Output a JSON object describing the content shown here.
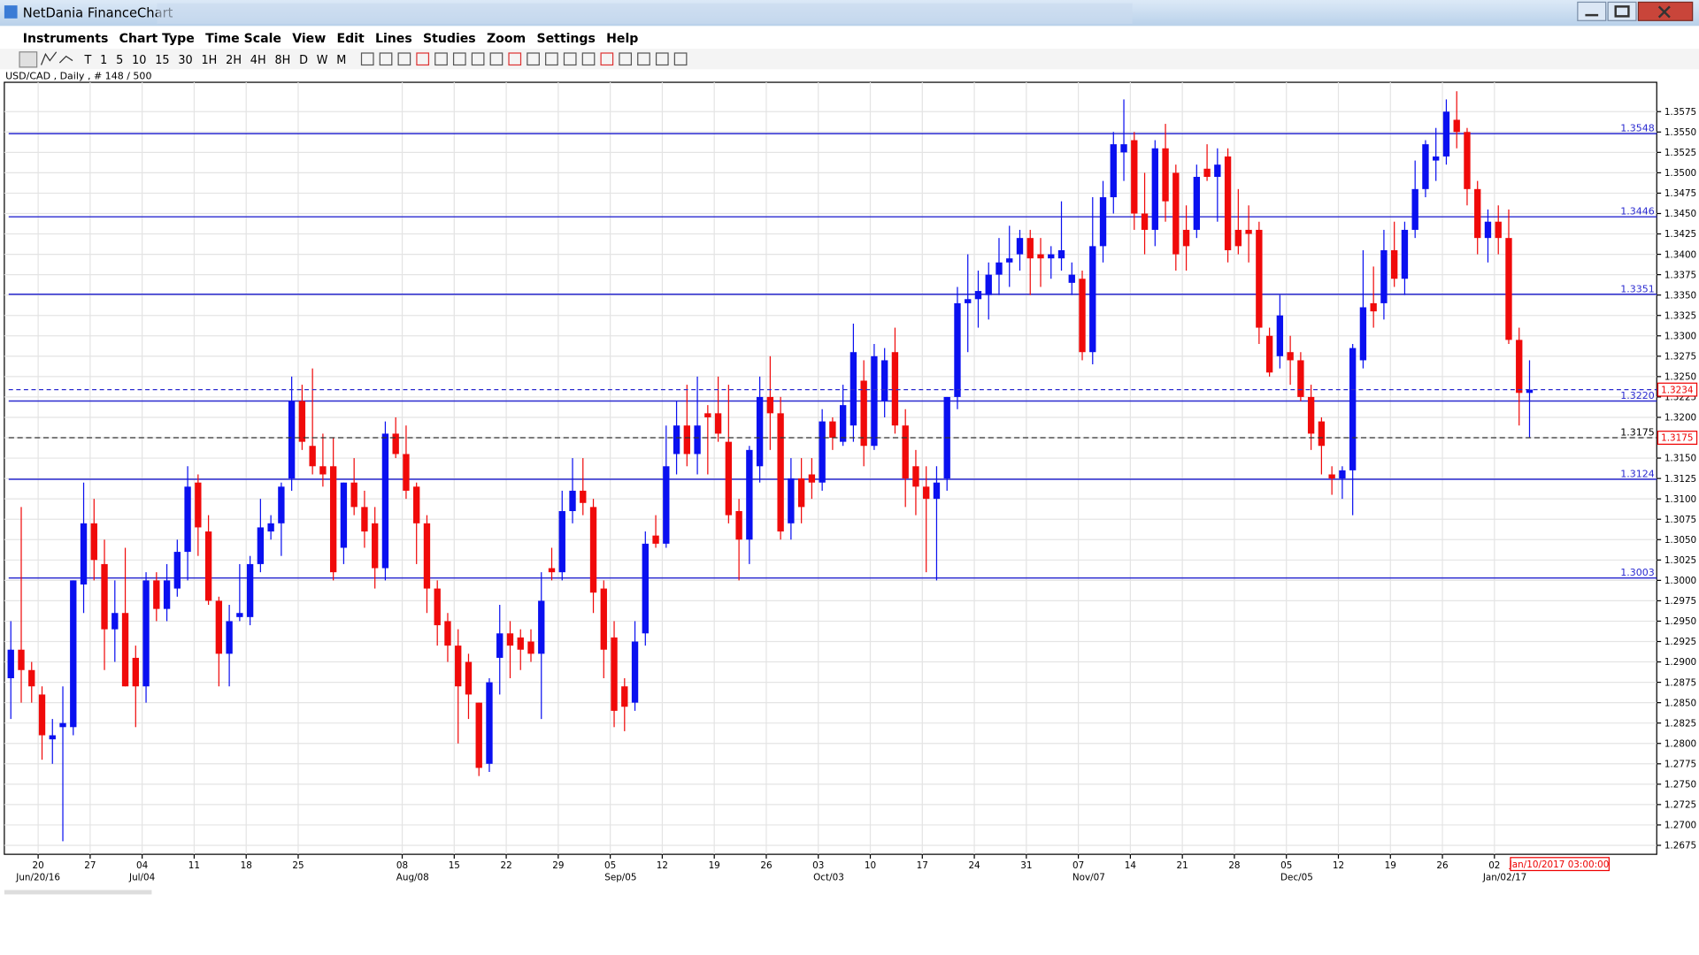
{
  "window": {
    "title": "NetDania FinanceChart"
  },
  "menu": [
    "Instruments",
    "Chart Type",
    "Time Scale",
    "View",
    "Edit",
    "Lines",
    "Studies",
    "Zoom",
    "Settings",
    "Help"
  ],
  "toolbar": [
    "T",
    "1",
    "5",
    "10",
    "15",
    "30",
    "1H",
    "2H",
    "4H",
    "8H",
    "D",
    "W",
    "M"
  ],
  "chart_data": {
    "type": "candlestick",
    "title": "USD/CAD , Daily , # 148 / 500",
    "up_color": "#0a10f0",
    "down_color": "#f00a0a",
    "grid": true,
    "ylim": [
      1.2664,
      1.3611
    ],
    "yticks": [
      1.2675,
      {
        "value": 1.27,
        "label": "1.2700"
      },
      1.2725,
      {
        "value": 1.275,
        "label": "1.2750"
      },
      1.2775,
      {
        "value": 1.28,
        "label": "1.2800"
      },
      1.2825,
      {
        "value": 1.285,
        "label": "1.2850"
      },
      1.2875,
      {
        "value": 1.29,
        "label": "1.2900"
      },
      1.2925,
      {
        "value": 1.295,
        "label": "1.2950"
      },
      1.2975,
      {
        "value": 1.3,
        "label": "1.3000"
      },
      1.3025,
      {
        "value": 1.305,
        "label": "1.3050"
      },
      1.3075,
      {
        "value": 1.31,
        "label": "1.3100"
      },
      1.3125,
      {
        "value": 1.315,
        "label": "1.3150"
      },
      1.3175,
      {
        "value": 1.32,
        "label": "1.3200"
      },
      1.3225,
      {
        "value": 1.325,
        "label": "1.3250"
      },
      1.3275,
      {
        "value": 1.33,
        "label": "1.3300"
      },
      1.3325,
      {
        "value": 1.335,
        "label": "1.3350"
      },
      1.3375,
      {
        "value": 1.34,
        "label": "1.3400"
      },
      1.3425,
      {
        "value": 1.345,
        "label": "1.3450"
      },
      1.3475,
      {
        "value": 1.35,
        "label": "1.3500"
      },
      1.3525,
      {
        "value": 1.355,
        "label": "1.3550"
      },
      1.3575
    ],
    "levels": [
      1.3548,
      1.3446,
      1.3351,
      {
        "value": 1.322,
        "label": "1.3220"
      },
      1.3124,
      1.3003
    ],
    "level_color": "#2a2ad0",
    "last_price": 1.3234,
    "marker_price": 1.3175,
    "cursor_time": "Jan/10/2017 03:00:00",
    "categories": [
      null,
      null,
      "20",
      null,
      null,
      null,
      null,
      "27",
      null,
      null,
      null,
      null,
      "04",
      null,
      null,
      null,
      null,
      "11",
      null,
      null,
      null,
      null,
      "18",
      null,
      null,
      null,
      null,
      "25",
      null,
      null,
      null,
      null,
      null,
      null,
      null,
      null,
      null,
      "08",
      null,
      null,
      null,
      null,
      "15",
      null,
      null,
      null,
      null,
      "22",
      null,
      null,
      null,
      null,
      "29",
      null,
      null,
      null,
      null,
      "05",
      null,
      null,
      null,
      null,
      "12",
      null,
      null,
      null,
      null,
      "19",
      null,
      null,
      null,
      null,
      "26",
      null,
      null,
      null,
      null,
      "03",
      null,
      null,
      null,
      null,
      "10",
      null,
      null,
      null,
      null,
      "17",
      null,
      null,
      null,
      null,
      "24",
      null,
      null,
      null,
      null,
      "31",
      null,
      null,
      null,
      null,
      "07",
      null,
      null,
      null,
      null,
      "14",
      null,
      null,
      null,
      null,
      "21",
      null,
      null,
      null,
      null,
      "28",
      null,
      null,
      null,
      null,
      "05",
      null,
      null,
      null,
      null,
      "12",
      null,
      null,
      null,
      null,
      "19",
      null,
      null,
      null,
      null,
      "26",
      null,
      null,
      null,
      null,
      "02",
      null,
      null,
      null,
      null,
      null
    ],
    "months": [
      null,
      null,
      "Jun/20/16",
      null,
      null,
      null,
      null,
      null,
      null,
      null,
      null,
      null,
      "Jul/04",
      null,
      null,
      null,
      null,
      null,
      null,
      null,
      null,
      null,
      null,
      null,
      null,
      null,
      null,
      null,
      null,
      null,
      null,
      null,
      null,
      null,
      null,
      null,
      null,
      null,
      "Aug/08",
      null,
      null,
      null,
      null,
      null,
      null,
      null,
      null,
      null,
      null,
      null,
      null,
      null,
      null,
      null,
      null,
      null,
      null,
      null,
      "Sep/05",
      null,
      null,
      null,
      null,
      null,
      null,
      null,
      null,
      null,
      null,
      null,
      null,
      null,
      null,
      null,
      null,
      null,
      null,
      null,
      "Oct/03",
      null,
      null,
      null,
      null,
      null,
      null,
      null,
      null,
      null,
      null,
      null,
      null,
      null,
      null,
      null,
      null,
      null,
      null,
      null,
      null,
      null,
      null,
      null,
      null,
      "Nov/07",
      null,
      null,
      null,
      null,
      null,
      null,
      null,
      null,
      null,
      null,
      null,
      null,
      null,
      null,
      null,
      null,
      null,
      null,
      null,
      "Dec/05",
      null,
      null,
      null,
      null,
      null,
      null,
      null,
      null,
      null,
      null,
      null,
      null,
      null,
      null,
      null,
      null,
      null,
      null,
      null,
      "Jan/02/17",
      null,
      null,
      null,
      null,
      null
    ],
    "ohlc": [
      [
        1.288,
        1.295,
        1.283,
        1.2915
      ],
      [
        1.2915,
        1.309,
        1.285,
        1.289
      ],
      [
        1.289,
        1.29,
        1.285,
        1.287
      ],
      [
        1.286,
        1.287,
        1.278,
        1.281
      ],
      [
        1.2805,
        1.283,
        1.2775,
        1.281
      ],
      [
        1.282,
        1.287,
        1.268,
        1.2825
      ],
      [
        1.282,
        1.3,
        1.281,
        1.3
      ],
      [
        1.2995,
        1.312,
        1.296,
        1.307
      ],
      [
        1.307,
        1.31,
        1.3,
        1.3025
      ],
      [
        1.302,
        1.305,
        1.289,
        1.294
      ],
      [
        1.294,
        1.3,
        1.29,
        1.296
      ],
      [
        1.296,
        1.304,
        1.287,
        1.287
      ],
      [
        1.2905,
        1.292,
        1.282,
        1.287
      ],
      [
        1.287,
        1.301,
        1.285,
        1.3
      ],
      [
        1.3,
        1.301,
        1.295,
        1.2965
      ],
      [
        1.2965,
        1.302,
        1.295,
        1.3
      ],
      [
        1.299,
        1.305,
        1.298,
        1.3035
      ],
      [
        1.3035,
        1.314,
        1.3,
        1.3115
      ],
      [
        1.312,
        1.313,
        1.303,
        1.3065
      ],
      [
        1.306,
        1.308,
        1.297,
        1.2975
      ],
      [
        1.2975,
        1.298,
        1.287,
        1.291
      ],
      [
        1.291,
        1.297,
        1.287,
        1.295
      ],
      [
        1.2955,
        1.302,
        1.295,
        1.296
      ],
      [
        1.2955,
        1.303,
        1.2945,
        1.302
      ],
      [
        1.302,
        1.31,
        1.301,
        1.3065
      ],
      [
        1.306,
        1.308,
        1.305,
        1.307
      ],
      [
        1.307,
        1.312,
        1.303,
        1.3115
      ],
      [
        1.3125,
        1.325,
        1.311,
        1.322
      ],
      [
        1.322,
        1.324,
        1.316,
        1.317
      ],
      [
        1.3165,
        1.326,
        1.313,
        1.314
      ],
      [
        1.314,
        1.318,
        1.3115,
        1.313
      ],
      [
        1.314,
        1.3175,
        1.3,
        1.301
      ],
      [
        1.304,
        1.312,
        1.302,
        1.312
      ],
      [
        1.312,
        1.315,
        1.308,
        1.309
      ],
      [
        1.309,
        1.311,
        1.304,
        1.306
      ],
      [
        1.307,
        1.309,
        1.299,
        1.3015
      ],
      [
        1.3015,
        1.3195,
        1.3,
        1.318
      ],
      [
        1.318,
        1.32,
        1.315,
        1.3155
      ],
      [
        1.3155,
        1.319,
        1.31,
        1.311
      ],
      [
        1.3115,
        1.312,
        1.302,
        1.307
      ],
      [
        1.307,
        1.308,
        1.296,
        1.299
      ],
      [
        1.299,
        1.3,
        1.292,
        1.2945
      ],
      [
        1.295,
        1.296,
        1.29,
        1.292
      ],
      [
        1.292,
        1.294,
        1.28,
        1.287
      ],
      [
        1.29,
        1.291,
        1.283,
        1.286
      ],
      [
        1.285,
        1.285,
        1.276,
        1.277
      ],
      [
        1.2775,
        1.288,
        1.2765,
        1.2875
      ],
      [
        1.2905,
        1.297,
        1.286,
        1.2935
      ],
      [
        1.2935,
        1.295,
        1.288,
        1.292
      ],
      [
        1.293,
        1.294,
        1.289,
        1.2915
      ],
      [
        1.2925,
        1.294,
        1.29,
        1.291
      ],
      [
        1.291,
        1.301,
        1.283,
        1.2975
      ],
      [
        1.3015,
        1.304,
        1.3,
        1.301
      ],
      [
        1.301,
        1.311,
        1.3,
        1.3085
      ],
      [
        1.3085,
        1.315,
        1.307,
        1.311
      ],
      [
        1.311,
        1.315,
        1.308,
        1.3095
      ],
      [
        1.309,
        1.31,
        1.296,
        1.2985
      ],
      [
        1.299,
        1.3,
        1.288,
        1.2915
      ],
      [
        1.293,
        1.295,
        1.282,
        1.284
      ],
      [
        1.287,
        1.288,
        1.2815,
        1.2845
      ],
      [
        1.285,
        1.295,
        1.284,
        1.2925
      ],
      [
        1.2935,
        1.306,
        1.292,
        1.3045
      ],
      [
        1.3055,
        1.308,
        1.304,
        1.3045
      ],
      [
        1.3045,
        1.319,
        1.304,
        1.314
      ],
      [
        1.3155,
        1.322,
        1.313,
        1.319
      ],
      [
        1.319,
        1.324,
        1.314,
        1.3155
      ],
      [
        1.3155,
        1.325,
        1.313,
        1.319
      ],
      [
        1.3205,
        1.3215,
        1.313,
        1.32
      ],
      [
        1.3205,
        1.325,
        1.317,
        1.318
      ],
      [
        1.317,
        1.324,
        1.307,
        1.308
      ],
      [
        1.3085,
        1.31,
        1.3,
        1.305
      ],
      [
        1.305,
        1.3165,
        1.302,
        1.316
      ],
      [
        1.314,
        1.325,
        1.312,
        1.3225
      ],
      [
        1.3225,
        1.3275,
        1.316,
        1.3205
      ],
      [
        1.3205,
        1.3225,
        1.305,
        1.306
      ],
      [
        1.307,
        1.315,
        1.305,
        1.3125
      ],
      [
        1.3125,
        1.315,
        1.307,
        1.309
      ],
      [
        1.313,
        1.315,
        1.31,
        1.312
      ],
      [
        1.312,
        1.321,
        1.311,
        1.3195
      ],
      [
        1.3195,
        1.32,
        1.316,
        1.3175
      ],
      [
        1.317,
        1.324,
        1.3165,
        1.3215
      ],
      [
        1.319,
        1.3315,
        1.317,
        1.328
      ],
      [
        1.3245,
        1.327,
        1.314,
        1.3165
      ],
      [
        1.3165,
        1.329,
        1.316,
        1.3275
      ],
      [
        1.322,
        1.3285,
        1.32,
        1.327
      ],
      [
        1.328,
        1.331,
        1.318,
        1.319
      ],
      [
        1.319,
        1.321,
        1.309,
        1.3125
      ],
      [
        1.314,
        1.316,
        1.308,
        1.3115
      ],
      [
        1.3115,
        1.314,
        1.301,
        1.31
      ],
      [
        1.31,
        1.314,
        1.3,
        1.312
      ],
      [
        1.3125,
        1.3225,
        1.311,
        1.3225
      ],
      [
        1.3225,
        1.336,
        1.321,
        1.334
      ],
      [
        1.334,
        1.34,
        1.328,
        1.3345
      ],
      [
        1.3345,
        1.338,
        1.331,
        1.3355
      ],
      [
        1.335,
        1.339,
        1.332,
        1.3375
      ],
      [
        1.3375,
        1.342,
        1.335,
        1.339
      ],
      [
        1.339,
        1.3435,
        1.336,
        1.3395
      ],
      [
        1.34,
        1.343,
        1.338,
        1.342
      ],
      [
        1.342,
        1.343,
        1.335,
        1.3395
      ],
      [
        1.34,
        1.342,
        1.336,
        1.3395
      ],
      [
        1.3395,
        1.341,
        1.337,
        1.34
      ],
      [
        1.3395,
        1.3465,
        1.338,
        1.3405
      ],
      [
        1.3365,
        1.339,
        1.335,
        1.3375
      ],
      [
        1.337,
        1.338,
        1.327,
        1.328
      ],
      [
        1.328,
        1.347,
        1.3265,
        1.341
      ],
      [
        1.341,
        1.349,
        1.339,
        1.347
      ],
      [
        1.347,
        1.355,
        1.345,
        1.3535
      ],
      [
        1.3525,
        1.359,
        1.349,
        1.3535
      ],
      [
        1.354,
        1.355,
        1.343,
        1.345
      ],
      [
        1.345,
        1.35,
        1.34,
        1.343
      ],
      [
        1.343,
        1.354,
        1.341,
        1.353
      ],
      [
        1.353,
        1.356,
        1.344,
        1.3465
      ],
      [
        1.35,
        1.351,
        1.338,
        1.34
      ],
      [
        1.343,
        1.346,
        1.338,
        1.341
      ],
      [
        1.343,
        1.351,
        1.342,
        1.3495
      ],
      [
        1.3505,
        1.3535,
        1.349,
        1.3495
      ],
      [
        1.3495,
        1.353,
        1.344,
        1.351
      ],
      [
        1.352,
        1.353,
        1.339,
        1.3405
      ],
      [
        1.343,
        1.348,
        1.34,
        1.341
      ],
      [
        1.343,
        1.346,
        1.339,
        1.3425
      ],
      [
        1.343,
        1.344,
        1.329,
        1.331
      ],
      [
        1.33,
        1.331,
        1.325,
        1.3255
      ],
      [
        1.3275,
        1.335,
        1.326,
        1.3325
      ],
      [
        1.328,
        1.33,
        1.324,
        1.327
      ],
      [
        1.327,
        1.328,
        1.322,
        1.3225
      ],
      [
        1.3225,
        1.324,
        1.316,
        1.318
      ],
      [
        1.3195,
        1.32,
        1.313,
        1.3165
      ],
      [
        1.313,
        1.314,
        1.3105,
        1.3125
      ],
      [
        1.3125,
        1.314,
        1.31,
        1.3135
      ],
      [
        1.3135,
        1.329,
        1.308,
        1.3285
      ],
      [
        1.327,
        1.3405,
        1.326,
        1.3335
      ],
      [
        1.334,
        1.3385,
        1.331,
        1.333
      ],
      [
        1.334,
        1.343,
        1.332,
        1.3405
      ],
      [
        1.3405,
        1.344,
        1.336,
        1.337
      ],
      [
        1.337,
        1.344,
        1.335,
        1.343
      ],
      [
        1.343,
        1.3515,
        1.342,
        1.348
      ],
      [
        1.348,
        1.354,
        1.347,
        1.3535
      ],
      [
        1.3515,
        1.3555,
        1.349,
        1.352
      ],
      [
        1.352,
        1.359,
        1.351,
        1.3575
      ],
      [
        1.3565,
        1.36,
        1.353,
        1.355
      ],
      [
        1.355,
        1.3555,
        1.346,
        1.348
      ],
      [
        1.348,
        1.349,
        1.34,
        1.342
      ],
      [
        1.342,
        1.3455,
        1.339,
        1.344
      ],
      [
        1.344,
        1.346,
        1.34,
        1.342
      ],
      [
        1.342,
        1.3455,
        1.329,
        1.3295
      ],
      [
        1.3295,
        1.331,
        1.319,
        1.323
      ],
      [
        1.323,
        1.327,
        1.3175,
        1.3234
      ]
    ]
  }
}
